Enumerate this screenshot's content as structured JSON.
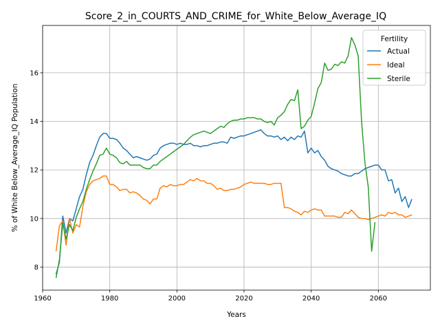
{
  "chart_data": {
    "type": "line",
    "title": "Score_2_in_COURTS_AND_CRIME_for_White_Below_Average_IQ",
    "xlabel": "Years",
    "ylabel": "% of White Below_Average_IQ Population",
    "xlim": [
      1960,
      2075.5
    ],
    "ylim": [
      7.05,
      17.95
    ],
    "xticks": [
      1960,
      1980,
      2000,
      2020,
      2040,
      2060
    ],
    "yticks": [
      8,
      10,
      12,
      14,
      16
    ],
    "grid": true,
    "legend": {
      "title": "Fertility",
      "placement": "top-right"
    },
    "series": [
      {
        "name": "Actual",
        "color": "#1f77b4",
        "points": [
          [
            1964,
            7.7
          ],
          [
            1965,
            8.2
          ],
          [
            1966,
            10.1
          ],
          [
            1967,
            9.4
          ],
          [
            1968,
            10.0
          ],
          [
            1969,
            9.9
          ],
          [
            1970,
            10.4
          ],
          [
            1971,
            10.9
          ],
          [
            1972,
            11.2
          ],
          [
            1973,
            11.8
          ],
          [
            1974,
            12.3
          ],
          [
            1975,
            12.6
          ],
          [
            1976,
            13.0
          ],
          [
            1977,
            13.35
          ],
          [
            1978,
            13.5
          ],
          [
            1979,
            13.5
          ],
          [
            1980,
            13.3
          ],
          [
            1981,
            13.3
          ],
          [
            1982,
            13.25
          ],
          [
            1983,
            13.1
          ],
          [
            1984,
            12.9
          ],
          [
            1985,
            12.8
          ],
          [
            1986,
            12.65
          ],
          [
            1987,
            12.5
          ],
          [
            1988,
            12.55
          ],
          [
            1989,
            12.5
          ],
          [
            1990,
            12.45
          ],
          [
            1991,
            12.4
          ],
          [
            1992,
            12.45
          ],
          [
            1993,
            12.6
          ],
          [
            1994,
            12.65
          ],
          [
            1995,
            12.9
          ],
          [
            1996,
            13.0
          ],
          [
            1997,
            13.05
          ],
          [
            1998,
            13.1
          ],
          [
            1999,
            13.1
          ],
          [
            2000,
            13.05
          ],
          [
            2001,
            13.1
          ],
          [
            2002,
            13.05
          ],
          [
            2003,
            13.05
          ],
          [
            2004,
            13.1
          ],
          [
            2005,
            13.0
          ],
          [
            2006,
            13.0
          ],
          [
            2007,
            12.95
          ],
          [
            2008,
            13.0
          ],
          [
            2009,
            13.0
          ],
          [
            2010,
            13.05
          ],
          [
            2011,
            13.1
          ],
          [
            2012,
            13.1
          ],
          [
            2013,
            13.15
          ],
          [
            2014,
            13.15
          ],
          [
            2015,
            13.1
          ],
          [
            2016,
            13.35
          ],
          [
            2017,
            13.3
          ],
          [
            2018,
            13.35
          ],
          [
            2019,
            13.4
          ],
          [
            2020,
            13.4
          ],
          [
            2021,
            13.45
          ],
          [
            2022,
            13.5
          ],
          [
            2023,
            13.55
          ],
          [
            2024,
            13.6
          ],
          [
            2025,
            13.65
          ],
          [
            2026,
            13.5
          ],
          [
            2027,
            13.4
          ],
          [
            2028,
            13.4
          ],
          [
            2029,
            13.35
          ],
          [
            2030,
            13.4
          ],
          [
            2031,
            13.25
          ],
          [
            2032,
            13.35
          ],
          [
            2033,
            13.2
          ],
          [
            2034,
            13.35
          ],
          [
            2035,
            13.25
          ],
          [
            2036,
            13.4
          ],
          [
            2037,
            13.35
          ],
          [
            2038,
            13.6
          ],
          [
            2039,
            12.7
          ],
          [
            2040,
            12.9
          ],
          [
            2041,
            12.7
          ],
          [
            2042,
            12.8
          ],
          [
            2043,
            12.55
          ],
          [
            2044,
            12.4
          ],
          [
            2045,
            12.15
          ],
          [
            2046,
            12.05
          ],
          [
            2047,
            12.0
          ],
          [
            2048,
            11.95
          ],
          [
            2049,
            11.85
          ],
          [
            2050,
            11.8
          ],
          [
            2051,
            11.75
          ],
          [
            2052,
            11.75
          ],
          [
            2053,
            11.85
          ],
          [
            2054,
            11.85
          ],
          [
            2055,
            11.95
          ],
          [
            2056,
            12.05
          ],
          [
            2057,
            12.1
          ],
          [
            2058,
            12.15
          ],
          [
            2059,
            12.2
          ],
          [
            2060,
            12.2
          ],
          [
            2061,
            12.0
          ],
          [
            2062,
            12.0
          ],
          [
            2063,
            11.55
          ],
          [
            2064,
            11.6
          ],
          [
            2065,
            11.05
          ],
          [
            2066,
            11.25
          ],
          [
            2067,
            10.7
          ],
          [
            2068,
            10.9
          ],
          [
            2069,
            10.45
          ],
          [
            2070,
            10.8
          ]
        ]
      },
      {
        "name": "Ideal",
        "color": "#ff7f0e",
        "points": [
          [
            1964,
            8.65
          ],
          [
            1965,
            9.7
          ],
          [
            1966,
            9.9
          ],
          [
            1967,
            8.9
          ],
          [
            1968,
            10.0
          ],
          [
            1969,
            9.4
          ],
          [
            1970,
            9.75
          ],
          [
            1971,
            9.65
          ],
          [
            1972,
            10.5
          ],
          [
            1973,
            11.1
          ],
          [
            1974,
            11.4
          ],
          [
            1975,
            11.55
          ],
          [
            1976,
            11.6
          ],
          [
            1977,
            11.65
          ],
          [
            1978,
            11.75
          ],
          [
            1979,
            11.75
          ],
          [
            1980,
            11.4
          ],
          [
            1981,
            11.4
          ],
          [
            1982,
            11.3
          ],
          [
            1983,
            11.15
          ],
          [
            1984,
            11.2
          ],
          [
            1985,
            11.2
          ],
          [
            1986,
            11.05
          ],
          [
            1987,
            11.1
          ],
          [
            1988,
            11.05
          ],
          [
            1989,
            10.95
          ],
          [
            1990,
            10.8
          ],
          [
            1991,
            10.75
          ],
          [
            1992,
            10.6
          ],
          [
            1993,
            10.8
          ],
          [
            1994,
            10.8
          ],
          [
            1995,
            11.25
          ],
          [
            1996,
            11.35
          ],
          [
            1997,
            11.3
          ],
          [
            1998,
            11.4
          ],
          [
            1999,
            11.35
          ],
          [
            2000,
            11.35
          ],
          [
            2001,
            11.4
          ],
          [
            2002,
            11.4
          ],
          [
            2003,
            11.5
          ],
          [
            2004,
            11.6
          ],
          [
            2005,
            11.55
          ],
          [
            2006,
            11.65
          ],
          [
            2007,
            11.55
          ],
          [
            2008,
            11.55
          ],
          [
            2009,
            11.45
          ],
          [
            2010,
            11.45
          ],
          [
            2011,
            11.35
          ],
          [
            2012,
            11.2
          ],
          [
            2013,
            11.25
          ],
          [
            2014,
            11.15
          ],
          [
            2015,
            11.15
          ],
          [
            2016,
            11.2
          ],
          [
            2017,
            11.2
          ],
          [
            2018,
            11.25
          ],
          [
            2019,
            11.3
          ],
          [
            2020,
            11.4
          ],
          [
            2021,
            11.45
          ],
          [
            2022,
            11.5
          ],
          [
            2023,
            11.45
          ],
          [
            2024,
            11.45
          ],
          [
            2025,
            11.45
          ],
          [
            2026,
            11.45
          ],
          [
            2027,
            11.4
          ],
          [
            2028,
            11.4
          ],
          [
            2029,
            11.45
          ],
          [
            2030,
            11.45
          ],
          [
            2031,
            11.45
          ],
          [
            2032,
            10.45
          ],
          [
            2033,
            10.45
          ],
          [
            2034,
            10.4
          ],
          [
            2035,
            10.3
          ],
          [
            2036,
            10.25
          ],
          [
            2037,
            10.15
          ],
          [
            2038,
            10.3
          ],
          [
            2039,
            10.25
          ],
          [
            2040,
            10.35
          ],
          [
            2041,
            10.4
          ],
          [
            2042,
            10.35
          ],
          [
            2043,
            10.35
          ],
          [
            2044,
            10.1
          ],
          [
            2045,
            10.1
          ],
          [
            2046,
            10.1
          ],
          [
            2047,
            10.1
          ],
          [
            2048,
            10.05
          ],
          [
            2049,
            10.05
          ],
          [
            2050,
            10.25
          ],
          [
            2051,
            10.2
          ],
          [
            2052,
            10.35
          ],
          [
            2053,
            10.2
          ],
          [
            2054,
            10.05
          ],
          [
            2055,
            10.0
          ],
          [
            2056,
            10.0
          ],
          [
            2057,
            9.95
          ],
          [
            2058,
            10.0
          ],
          [
            2059,
            10.05
          ],
          [
            2060,
            10.1
          ],
          [
            2061,
            10.15
          ],
          [
            2062,
            10.1
          ],
          [
            2063,
            10.25
          ],
          [
            2064,
            10.2
          ],
          [
            2065,
            10.25
          ],
          [
            2066,
            10.15
          ],
          [
            2067,
            10.15
          ],
          [
            2068,
            10.05
          ],
          [
            2069,
            10.1
          ],
          [
            2070,
            10.15
          ]
        ]
      },
      {
        "name": "Sterile",
        "color": "#2ca02c",
        "points": [
          [
            1964,
            7.55
          ],
          [
            1965,
            8.3
          ],
          [
            1966,
            9.8
          ],
          [
            1967,
            9.15
          ],
          [
            1968,
            9.75
          ],
          [
            1969,
            9.5
          ],
          [
            1970,
            10.05
          ],
          [
            1971,
            10.4
          ],
          [
            1972,
            10.7
          ],
          [
            1973,
            11.2
          ],
          [
            1974,
            11.6
          ],
          [
            1975,
            11.95
          ],
          [
            1976,
            12.25
          ],
          [
            1977,
            12.6
          ],
          [
            1978,
            12.65
          ],
          [
            1979,
            12.9
          ],
          [
            1980,
            12.65
          ],
          [
            1981,
            12.6
          ],
          [
            1982,
            12.5
          ],
          [
            1983,
            12.3
          ],
          [
            1984,
            12.25
          ],
          [
            1985,
            12.35
          ],
          [
            1986,
            12.2
          ],
          [
            1987,
            12.2
          ],
          [
            1988,
            12.2
          ],
          [
            1989,
            12.2
          ],
          [
            1990,
            12.1
          ],
          [
            1991,
            12.05
          ],
          [
            1992,
            12.05
          ],
          [
            1993,
            12.2
          ],
          [
            1994,
            12.2
          ],
          [
            1995,
            12.35
          ],
          [
            1996,
            12.45
          ],
          [
            1997,
            12.55
          ],
          [
            1998,
            12.65
          ],
          [
            1999,
            12.75
          ],
          [
            2000,
            12.85
          ],
          [
            2001,
            12.95
          ],
          [
            2002,
            13.05
          ],
          [
            2003,
            13.2
          ],
          [
            2004,
            13.35
          ],
          [
            2005,
            13.45
          ],
          [
            2006,
            13.5
          ],
          [
            2007,
            13.55
          ],
          [
            2008,
            13.6
          ],
          [
            2009,
            13.55
          ],
          [
            2010,
            13.5
          ],
          [
            2011,
            13.6
          ],
          [
            2012,
            13.7
          ],
          [
            2013,
            13.8
          ],
          [
            2014,
            13.75
          ],
          [
            2015,
            13.9
          ],
          [
            2016,
            14.0
          ],
          [
            2017,
            14.05
          ],
          [
            2018,
            14.05
          ],
          [
            2019,
            14.1
          ],
          [
            2020,
            14.1
          ],
          [
            2021,
            14.15
          ],
          [
            2022,
            14.15
          ],
          [
            2023,
            14.15
          ],
          [
            2024,
            14.1
          ],
          [
            2025,
            14.1
          ],
          [
            2026,
            14.0
          ],
          [
            2027,
            13.95
          ],
          [
            2028,
            14.0
          ],
          [
            2029,
            13.85
          ],
          [
            2030,
            14.15
          ],
          [
            2031,
            14.25
          ],
          [
            2032,
            14.4
          ],
          [
            2033,
            14.7
          ],
          [
            2034,
            14.9
          ],
          [
            2035,
            14.85
          ],
          [
            2036,
            15.3
          ],
          [
            2037,
            13.7
          ],
          [
            2038,
            13.8
          ],
          [
            2039,
            14.05
          ],
          [
            2040,
            14.2
          ],
          [
            2041,
            14.75
          ],
          [
            2042,
            15.35
          ],
          [
            2043,
            15.6
          ],
          [
            2044,
            16.4
          ],
          [
            2045,
            16.1
          ],
          [
            2046,
            16.15
          ],
          [
            2047,
            16.35
          ],
          [
            2048,
            16.3
          ],
          [
            2049,
            16.45
          ],
          [
            2050,
            16.4
          ],
          [
            2051,
            16.7
          ],
          [
            2052,
            17.45
          ],
          [
            2053,
            17.15
          ],
          [
            2054,
            16.7
          ],
          [
            2055,
            14.0
          ],
          [
            2056,
            12.3
          ],
          [
            2057,
            11.3
          ],
          [
            2058,
            8.65
          ],
          [
            2059,
            9.85
          ]
        ]
      }
    ]
  }
}
